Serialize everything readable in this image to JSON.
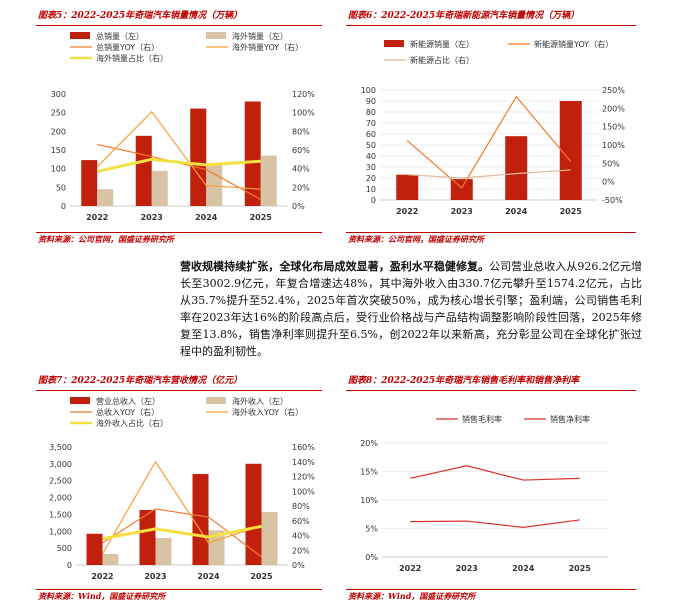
{
  "panels": [
    {
      "title": "图表5：2022-2025年奇瑞汽车销量情况（万辆）",
      "source": "资料来源：公司官网，国盛证券研究所"
    },
    {
      "title": "图表6：2022-2025年奇瑞新能源汽车销量情况（万辆）",
      "source": "资料来源：公司官网，国盛证券研究所"
    },
    {
      "title": "图表7：2022-2025年奇瑞汽车营收情况（亿元）",
      "source": "资料来源：Wind，国盛证券研究所"
    },
    {
      "title": "图表8：2022-2025年奇瑞汽车销售毛利率和销售净利率",
      "source": "资料来源：Wind，国盛证券研究所"
    }
  ],
  "paragraph": {
    "lead": "营收规模持续扩张，全球化布局成效显著，盈利水平稳健修复。",
    "body": "公司营业总收入从926.2亿元增长至3002.9亿元，年复合增速达48%，其中海外收入由330.7亿元攀升至1574.2亿元，占比从35.7%提升至52.4%，2025年首次突破50%，成为核心增长引擎；盈利端，公司销售毛利率在2023年达16%的阶段高点后，受行业价格战与产品结构调整影响阶段性回落，2025年修复至13.8%，销售净利率则提升至6.5%，创2022年以来新高，充分彰显公司在全球化扩张过程中的盈利韧性。"
  },
  "colors": {
    "accent": "#c00000",
    "bar_main": "#c0200c",
    "bar_secondary": "#d9c3a5",
    "line_orange": "#f07a2a",
    "line_yellow": "#f5e042",
    "line_tan": "#e2b89a",
    "line_red": "#d8332a"
  },
  "chart_data": [
    {
      "type": "bar",
      "categories": [
        "2022",
        "2023",
        "2024",
        "2025"
      ],
      "ylim_left": [
        0,
        300
      ],
      "yticks_left": [
        "0",
        "50",
        "100",
        "150",
        "200",
        "250",
        "300"
      ],
      "ylim_right": [
        0,
        120
      ],
      "yticks_right": [
        "0%",
        "20%",
        "40%",
        "60%",
        "80%",
        "100%",
        "120%"
      ],
      "series": [
        {
          "name": "总销量（左）",
          "kind": "bar",
          "axis": "left",
          "color": "#c0200c",
          "values": [
            123,
            188,
            261,
            280
          ]
        },
        {
          "name": "海外销量（左）",
          "kind": "bar",
          "axis": "left",
          "color": "#d9c3a5",
          "values": [
            45,
            94,
            114,
            135
          ]
        },
        {
          "name": "总销量YOY（右）",
          "kind": "line",
          "axis": "right",
          "color": "#f07a2a",
          "values": [
            66,
            53,
            39,
            7
          ]
        },
        {
          "name": "海外销量YOY（右）",
          "kind": "line",
          "axis": "right",
          "color": "#f5a03a",
          "values": [
            42,
            101,
            22,
            18
          ]
        },
        {
          "name": "海外销量占比（右）",
          "kind": "line",
          "axis": "right",
          "color": "#f5e042",
          "values": [
            37,
            50,
            44,
            48
          ]
        }
      ]
    },
    {
      "type": "bar",
      "categories": [
        "2022",
        "2023",
        "2024",
        "2025"
      ],
      "ylim_left": [
        0,
        100
      ],
      "yticks_left": [
        "0",
        "10",
        "20",
        "30",
        "40",
        "50",
        "60",
        "70",
        "80",
        "90",
        "100"
      ],
      "ylim_right": [
        -50,
        250
      ],
      "yticks_right": [
        "-50%",
        "0%",
        "50%",
        "100%",
        "150%",
        "200%",
        "250%"
      ],
      "series": [
        {
          "name": "新能源销量（左）",
          "kind": "bar",
          "axis": "left",
          "color": "#c0200c",
          "values": [
            23,
            19,
            58,
            90
          ]
        },
        {
          "name": "新能源销量YOY（右）",
          "kind": "line",
          "axis": "right",
          "color": "#f07a2a",
          "values": [
            112,
            -17,
            232,
            55
          ]
        },
        {
          "name": "新能源占比（右）",
          "kind": "line",
          "axis": "right",
          "color": "#e2b89a",
          "values": [
            19,
            10,
            22,
            32
          ]
        }
      ]
    },
    {
      "type": "bar",
      "categories": [
        "2022",
        "2023",
        "2024",
        "2025"
      ],
      "ylim_left": [
        0,
        3500
      ],
      "yticks_left": [
        "0",
        "500",
        "1,000",
        "1,500",
        "2,000",
        "2,500",
        "3,000",
        "3,500"
      ],
      "ylim_right": [
        0,
        160
      ],
      "yticks_right": [
        "0%",
        "20%",
        "40%",
        "60%",
        "80%",
        "100%",
        "120%",
        "140%",
        "160%"
      ],
      "series": [
        {
          "name": "营业总收入（左）",
          "kind": "bar",
          "axis": "left",
          "color": "#c0200c",
          "values": [
            926.2,
            1632,
            2698,
            3002.9
          ]
        },
        {
          "name": "海外收入（左）",
          "kind": "bar",
          "axis": "left",
          "color": "#d9c3a5",
          "values": [
            330.7,
            800,
            1030,
            1574.2
          ]
        },
        {
          "name": "总收入YOY（右）",
          "kind": "line",
          "axis": "right",
          "color": "#f07a2a",
          "values": [
            30,
            76,
            65,
            11
          ]
        },
        {
          "name": "海外收入YOY（右）",
          "kind": "line",
          "axis": "right",
          "color": "#f5a03a",
          "values": [
            15,
            140,
            30,
            53
          ]
        },
        {
          "name": "海外收入占比（右）",
          "kind": "line",
          "axis": "right",
          "color": "#f5e042",
          "values": [
            35.7,
            49,
            38,
            52.4
          ]
        }
      ]
    },
    {
      "type": "line",
      "categories": [
        "2022",
        "2023",
        "2024",
        "2025"
      ],
      "ylim_left": [
        0,
        20
      ],
      "yticks_left": [
        "0%",
        "5%",
        "10%",
        "15%",
        "20%"
      ],
      "series": [
        {
          "name": "销售毛利率",
          "kind": "line",
          "axis": "left",
          "color": "#d8332a",
          "values": [
            13.8,
            16.0,
            13.5,
            13.8
          ]
        },
        {
          "name": "销售净利率",
          "kind": "line",
          "axis": "left",
          "color": "#d8332a",
          "values": [
            6.2,
            6.3,
            5.2,
            6.5
          ]
        }
      ]
    }
  ]
}
